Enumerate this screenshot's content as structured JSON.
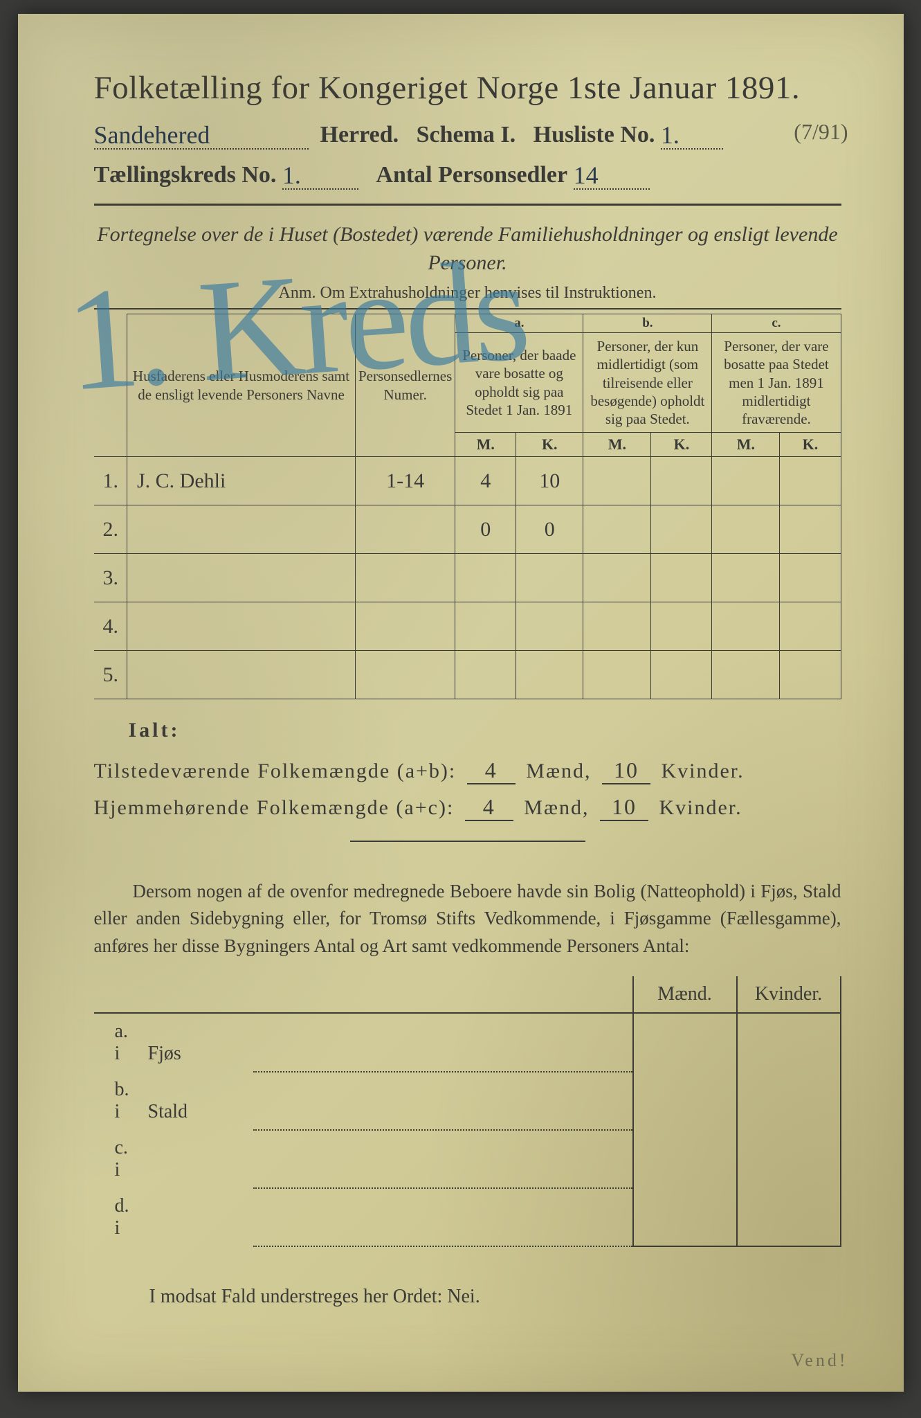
{
  "title": "Folketælling for Kongeriget Norge 1ste Januar 1891.",
  "line1": {
    "herred_value": "Sandehered",
    "herred_label": "Herred.",
    "schema": "Schema I.",
    "husliste_label": "Husliste No.",
    "husliste_value": "1.",
    "margin": "(7/91)"
  },
  "line2": {
    "kreds_label": "Tællingskreds No.",
    "kreds_value": "1.",
    "antal_label": "Antal Personsedler",
    "antal_value": "14"
  },
  "subtitle": "Fortegnelse over de i Huset (Bostedet) værende Familiehusholdninger og ensligt levende Personer.",
  "anm": "Anm. Om Extrahusholdninger henvises til Instruktionen.",
  "big_overlay": "1. Kreds",
  "table": {
    "col_names": "Husfaderens eller Husmoderens samt de ensligt levende Personers Navne",
    "col_sedler": "Personsedlernes Numer.",
    "abc": {
      "a": "a.",
      "b": "b.",
      "c": "c."
    },
    "col_a": "Personer, der baade vare bosatte og opholdt sig paa Stedet 1 Jan. 1891",
    "col_b": "Personer, der kun midlertidigt (som tilreisende eller besøgende) opholdt sig paa Stedet.",
    "col_c": "Personer, der vare bosatte paa Stedet men 1 Jan. 1891 midlertidigt fraværende.",
    "m": "M.",
    "k": "K.",
    "rows": [
      {
        "n": "1.",
        "name": "J. C. Dehli",
        "sedler": "1-14",
        "am": "4",
        "ak": "10",
        "bm": "",
        "bk": "",
        "cm": "",
        "ck": ""
      },
      {
        "n": "2.",
        "name": "",
        "sedler": "",
        "am": "0",
        "ak": "0",
        "bm": "",
        "bk": "",
        "cm": "",
        "ck": ""
      },
      {
        "n": "3.",
        "name": "",
        "sedler": "",
        "am": "",
        "ak": "",
        "bm": "",
        "bk": "",
        "cm": "",
        "ck": ""
      },
      {
        "n": "4.",
        "name": "",
        "sedler": "",
        "am": "",
        "ak": "",
        "bm": "",
        "bk": "",
        "cm": "",
        "ck": ""
      },
      {
        "n": "5.",
        "name": "",
        "sedler": "",
        "am": "",
        "ak": "",
        "bm": "",
        "bk": "",
        "cm": "",
        "ck": ""
      }
    ]
  },
  "ialt": "Ialt:",
  "sum1": {
    "label": "Tilstedeværende Folkemængde (a+b):",
    "m": "4",
    "mlabel": "Mænd,",
    "k": "10",
    "klabel": "Kvinder."
  },
  "sum2": {
    "label": "Hjemmehørende Folkemængde (a+c):",
    "m": "4",
    "mlabel": "Mænd,",
    "k": "10",
    "klabel": "Kvinder."
  },
  "paragraph": "Dersom nogen af de ovenfor medregnede Beboere havde sin Bolig (Natteophold) i Fjøs, Stald eller anden Sidebygning eller, for Tromsø Stifts Vedkommende, i Fjøsgamme (Fællesgamme), anføres her disse Bygningers Antal og Art samt vedkommende Personers Antal:",
  "lower": {
    "mhead": "Mænd.",
    "khead": "Kvinder.",
    "rows": [
      {
        "lab": "a.  i",
        "typ": "Fjøs"
      },
      {
        "lab": "b.  i",
        "typ": "Stald"
      },
      {
        "lab": "c.  i",
        "typ": ""
      },
      {
        "lab": "d.  i",
        "typ": ""
      }
    ]
  },
  "nei": "I modsat Fald understreges her Ordet: Nei.",
  "vend": "Vend!",
  "colors": {
    "ink": "#3a3a36",
    "blue": "#3a7aa0",
    "paper": "#d4cf9f"
  }
}
